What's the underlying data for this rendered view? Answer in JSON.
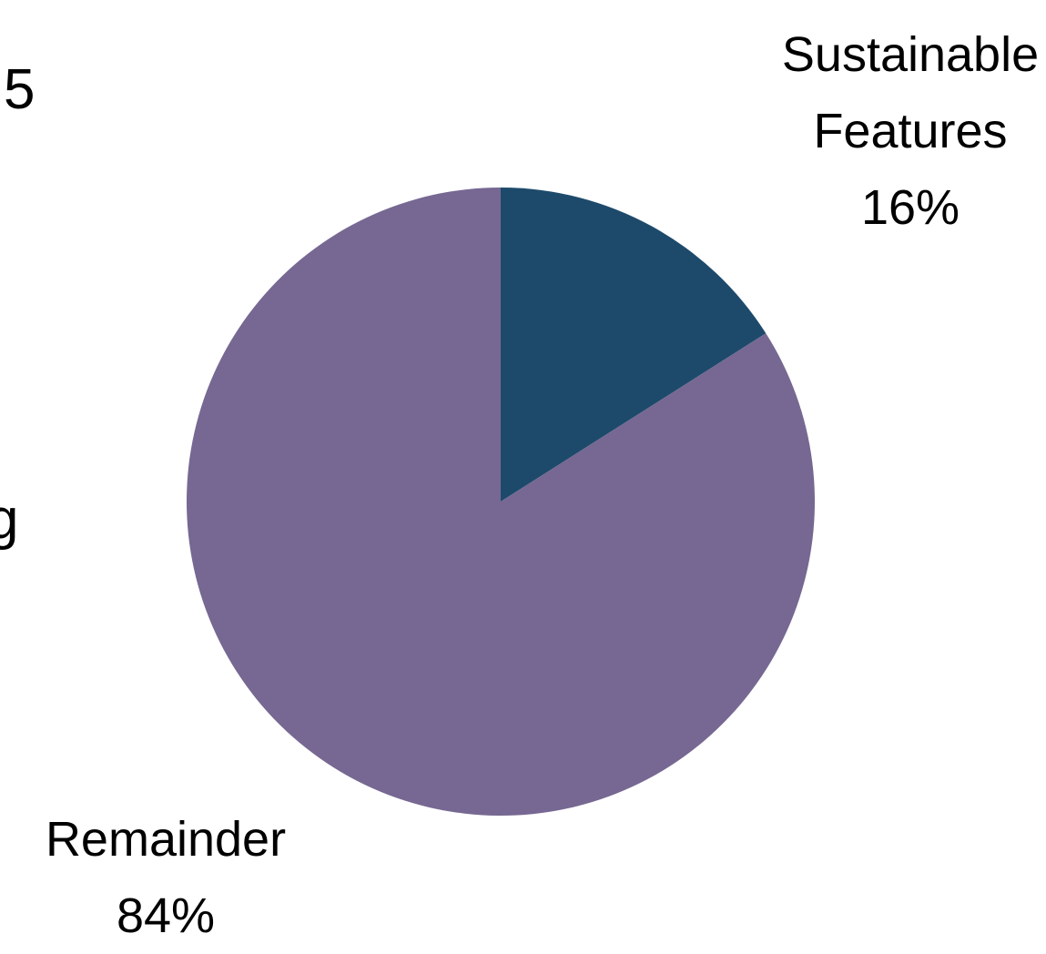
{
  "fragments": {
    "top_left": "5",
    "mid_left": "g"
  },
  "chart_data": {
    "type": "pie",
    "slices": [
      {
        "label_lines": [
          "Sustainable",
          "Features"
        ],
        "value": 16,
        "percent_text": "16%",
        "color": "#1d4a6b"
      },
      {
        "label_lines": [
          "Remainder"
        ],
        "value": 84,
        "percent_text": "84%",
        "color": "#766892"
      }
    ],
    "start_angle_deg": 0,
    "direction": "clockwise"
  }
}
